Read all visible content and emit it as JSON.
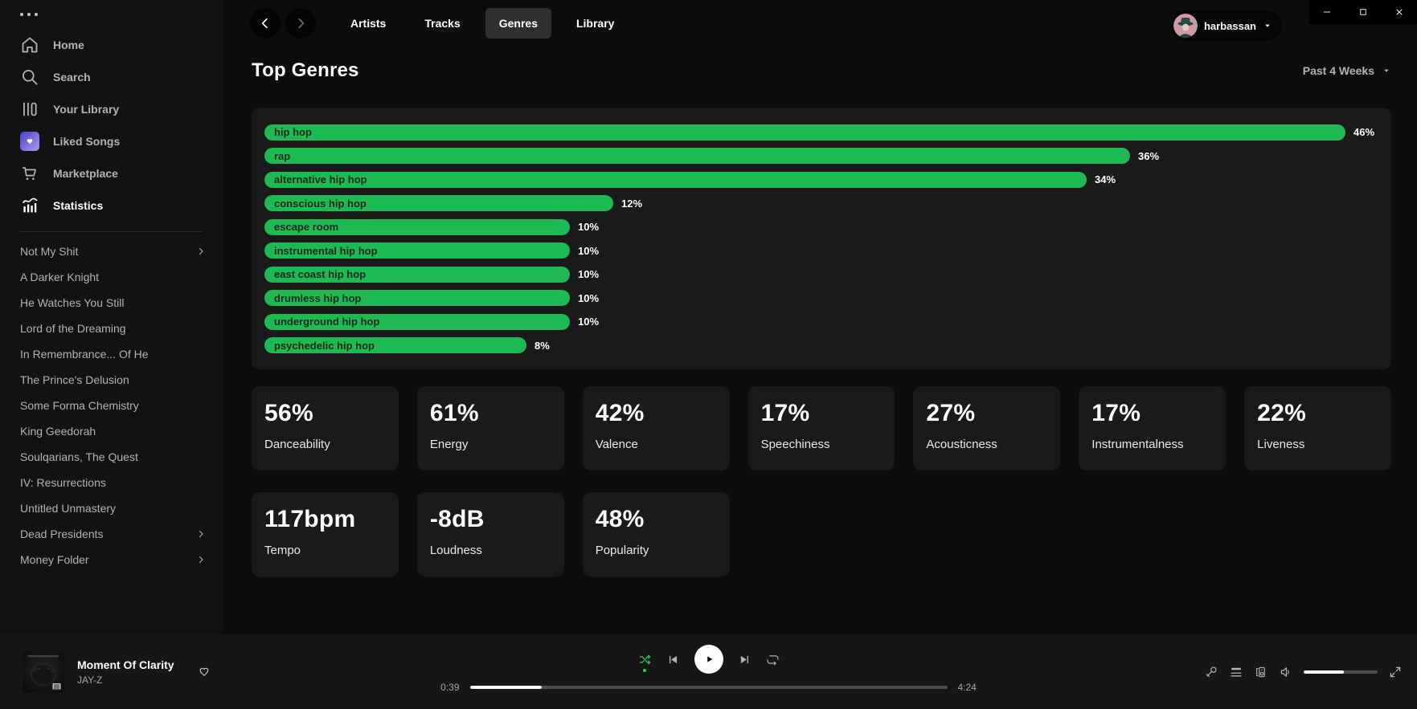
{
  "colors": {
    "accent_green": "#1db954",
    "shuffle_green": "#1ed760",
    "panel_bg": "#1a1a1a"
  },
  "sidebar": {
    "nav_items": [
      {
        "label": "Home",
        "icon": "home-icon",
        "active": false
      },
      {
        "label": "Search",
        "icon": "search-icon",
        "active": false
      },
      {
        "label": "Your Library",
        "icon": "library-icon",
        "active": false
      },
      {
        "label": "Liked Songs",
        "icon": "liked-songs-icon",
        "active": false
      },
      {
        "label": "Marketplace",
        "icon": "cart-icon",
        "active": false
      },
      {
        "label": "Statistics",
        "icon": "stats-icon",
        "active": true
      }
    ],
    "playlists": [
      {
        "label": "Not My Shit",
        "folder": true
      },
      {
        "label": "A Darker Knight",
        "folder": false
      },
      {
        "label": "He Watches You Still",
        "folder": false
      },
      {
        "label": "Lord of the Dreaming",
        "folder": false
      },
      {
        "label": "In Remembrance... Of He",
        "folder": false
      },
      {
        "label": "The Prince's Delusion",
        "folder": false
      },
      {
        "label": "Some Forma Chemistry",
        "folder": false
      },
      {
        "label": "King Geedorah",
        "folder": false
      },
      {
        "label": "Soulqarians, The Quest",
        "folder": false
      },
      {
        "label": "IV: Resurrections",
        "folder": false
      },
      {
        "label": "Untitled Unmastery",
        "folder": false
      },
      {
        "label": "Dead Presidents",
        "folder": true
      },
      {
        "label": "Money Folder",
        "folder": true
      }
    ]
  },
  "topbar": {
    "tabs": [
      {
        "label": "Artists",
        "active": false
      },
      {
        "label": "Tracks",
        "active": false
      },
      {
        "label": "Genres",
        "active": true
      },
      {
        "label": "Library",
        "active": false
      }
    ],
    "username": "harbassan"
  },
  "page": {
    "title": "Top Genres",
    "time_range": "Past 4 Weeks"
  },
  "chart_data": {
    "type": "bar",
    "orientation": "horizontal",
    "title": "Top Genres",
    "time_range": "Past 4 Weeks",
    "categories": [
      "hip hop",
      "rap",
      "alternative hip hop",
      "conscious hip hop",
      "escape room",
      "instrumental hip hop",
      "east coast hip hop",
      "drumless hip hop",
      "underground hip hop",
      "psychedelic hip hop"
    ],
    "values": [
      46,
      36,
      34,
      12,
      10,
      10,
      10,
      10,
      10,
      8
    ],
    "unit": "%",
    "bar_color": "#1db954",
    "value_labels_shown": true,
    "axes_shown": false
  },
  "stat_cards": [
    {
      "value": "56%",
      "label": "Danceability"
    },
    {
      "value": "61%",
      "label": "Energy"
    },
    {
      "value": "42%",
      "label": "Valence"
    },
    {
      "value": "17%",
      "label": "Speechiness"
    },
    {
      "value": "27%",
      "label": "Acousticness"
    },
    {
      "value": "17%",
      "label": "Instrumentalness"
    },
    {
      "value": "22%",
      "label": "Liveness"
    },
    {
      "value": "117bpm",
      "label": "Tempo"
    },
    {
      "value": "-8dB",
      "label": "Loudness"
    },
    {
      "value": "48%",
      "label": "Popularity"
    }
  ],
  "player": {
    "track_title": "Moment Of Clarity",
    "artist": "JAY-Z",
    "elapsed": "0:39",
    "duration": "4:24",
    "progress_percent": 15,
    "volume_percent": 54,
    "shuffle_active": true
  }
}
